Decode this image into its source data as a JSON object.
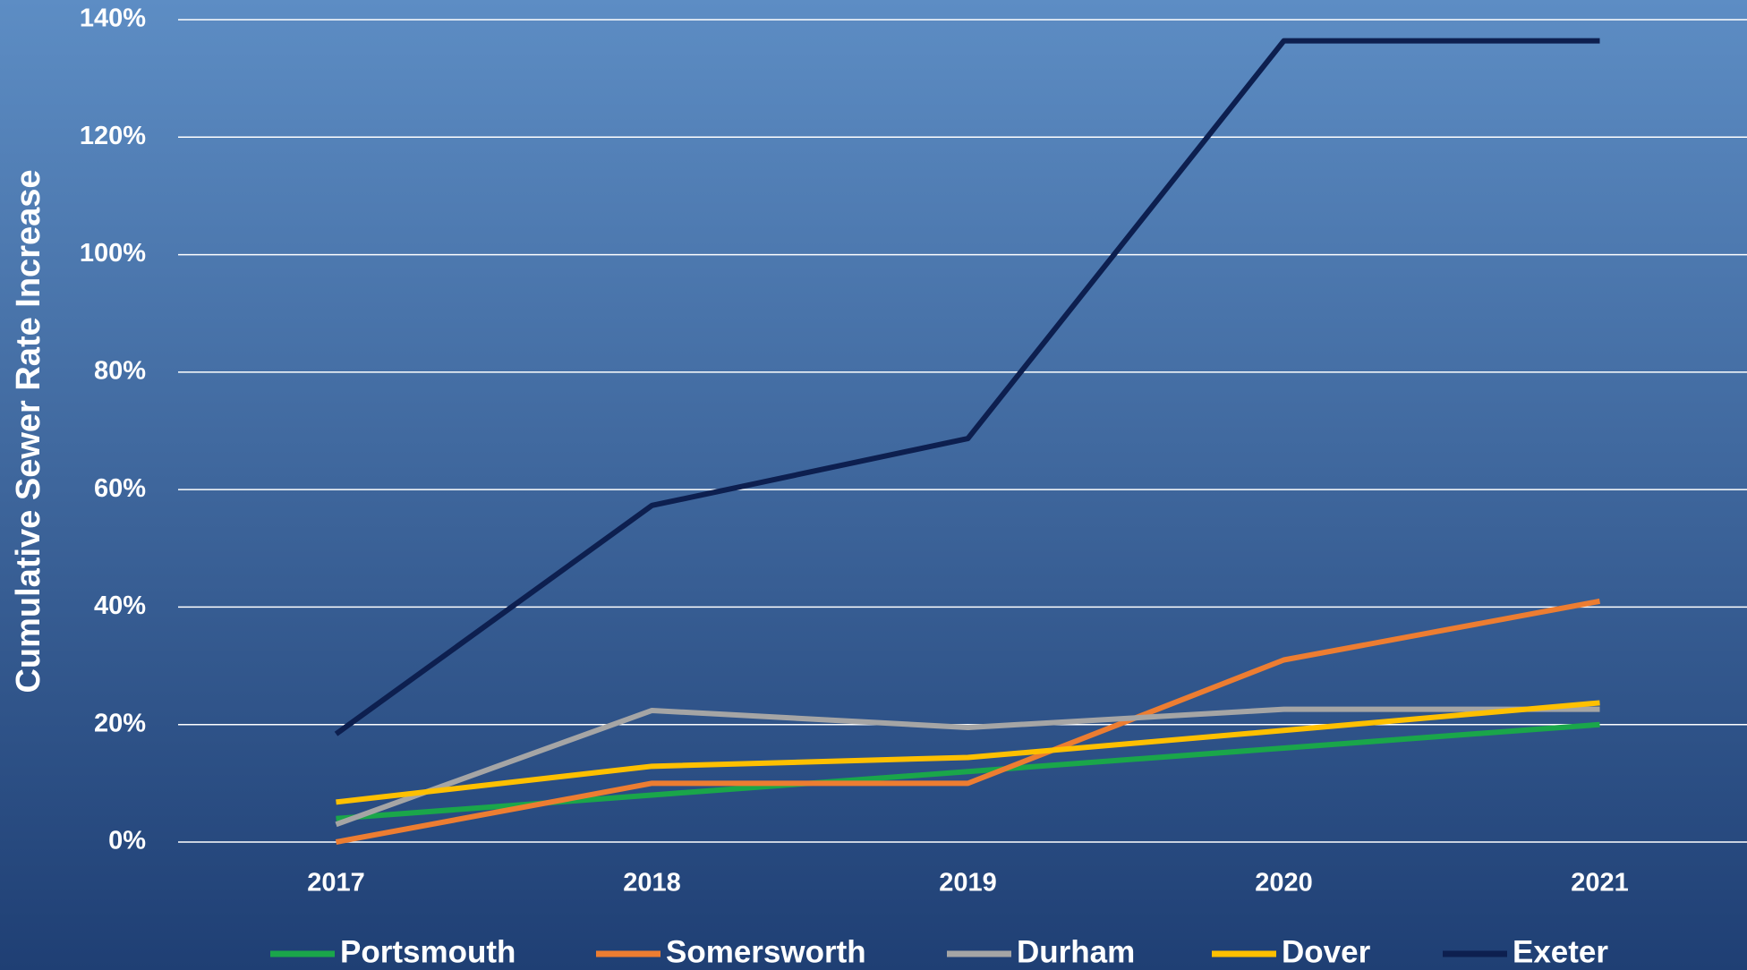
{
  "chart_data": {
    "type": "line",
    "y_axis_label": "Cumulative Sewer Rate Increase",
    "categories": [
      "2017",
      "2018",
      "2019",
      "2020",
      "2021"
    ],
    "series": [
      {
        "name": "Portsmouth",
        "color": "#1aa64a",
        "values": [
          4,
          8,
          12,
          16,
          20
        ]
      },
      {
        "name": "Somersworth",
        "color": "#ed7d31",
        "values": [
          0,
          10,
          10,
          31,
          41
        ]
      },
      {
        "name": "Durham",
        "color": "#a5a5a5",
        "values": [
          3,
          22.4,
          19.5,
          22.6,
          22.6
        ]
      },
      {
        "name": "Dover",
        "color": "#ffc000",
        "values": [
          6.8,
          12.9,
          14.4,
          19,
          23.7
        ]
      },
      {
        "name": "Exeter",
        "color": "#0d1f4f",
        "values": [
          18.4,
          57.3,
          68.7,
          136.4,
          136.4
        ]
      }
    ],
    "ylim": [
      0,
      140
    ],
    "yticks": [
      {
        "value": 0,
        "label": "0%"
      },
      {
        "value": 20,
        "label": "20%"
      },
      {
        "value": 40,
        "label": "40%"
      },
      {
        "value": 60,
        "label": "60%"
      },
      {
        "value": 80,
        "label": "80%"
      },
      {
        "value": 100,
        "label": "100%"
      },
      {
        "value": 120,
        "label": "120%"
      },
      {
        "value": 140,
        "label": "140%"
      }
    ],
    "grid": true,
    "legend": "bottom"
  }
}
